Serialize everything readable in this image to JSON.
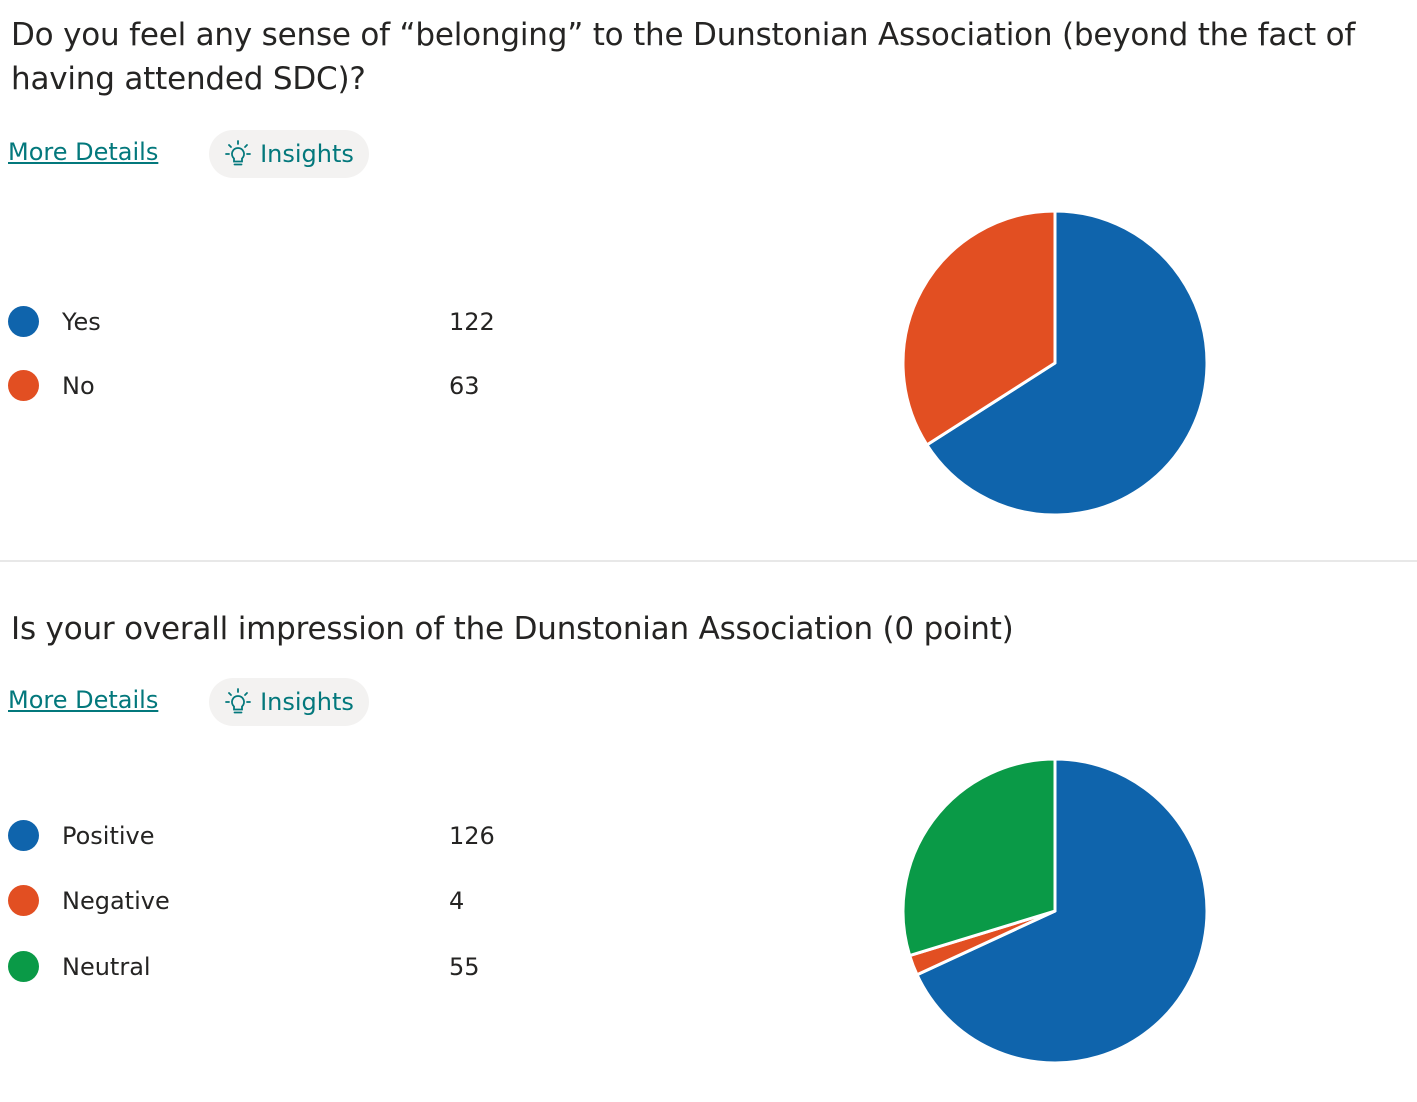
{
  "questions": [
    {
      "title": "Do you feel any sense of “belonging” to the Dunstonian Association (beyond the fact of having attended SDC)?",
      "more_details_label": "More Details",
      "insights_label": "Insights",
      "insights_icon": "lightbulb-icon",
      "options": [
        {
          "label": "Yes",
          "count": "122",
          "color": "#0f64ac"
        },
        {
          "label": "No",
          "count": "63",
          "color": "#e24f22"
        }
      ]
    },
    {
      "title": "Is your overall impression of the Dunstonian Association (0 point)",
      "more_details_label": "More Details",
      "insights_label": "Insights",
      "insights_icon": "lightbulb-icon",
      "options": [
        {
          "label": "Positive",
          "count": "126",
          "color": "#0f64ac"
        },
        {
          "label": "Negative",
          "count": "4",
          "color": "#e24f22"
        },
        {
          "label": "Neutral",
          "count": "55",
          "color": "#0a9a47"
        }
      ]
    }
  ],
  "chart_data": [
    {
      "type": "pie",
      "categories": [
        "Yes",
        "No"
      ],
      "values": [
        122,
        63
      ],
      "colors": [
        "#0f64ac",
        "#e24f22"
      ]
    },
    {
      "type": "pie",
      "categories": [
        "Positive",
        "Negative",
        "Neutral"
      ],
      "values": [
        126,
        4,
        55
      ],
      "colors": [
        "#0f64ac",
        "#e24f22",
        "#0a9a47"
      ]
    }
  ]
}
